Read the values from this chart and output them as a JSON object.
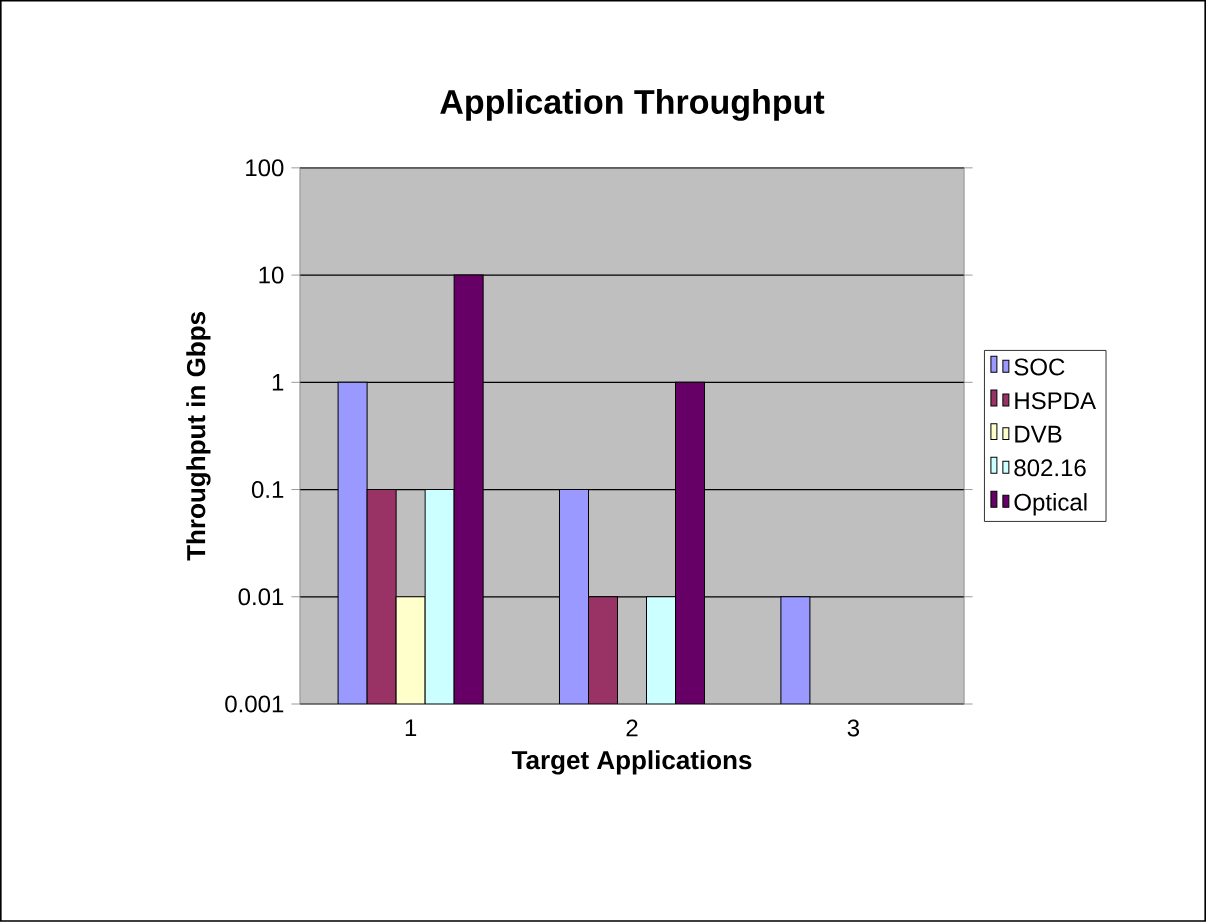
{
  "chart_data": {
    "type": "bar",
    "title": "Application Throughput",
    "xlabel": "Target Applications",
    "ylabel": "Throughput in Gbps",
    "categories": [
      "1",
      "2",
      "3"
    ],
    "series": [
      {
        "name": "SOC",
        "color": "#9999ff",
        "values": [
          1,
          0.1,
          0.01
        ]
      },
      {
        "name": "HSPDA",
        "color": "#993366",
        "values": [
          0.1,
          0.01,
          null
        ]
      },
      {
        "name": "DVB",
        "color": "#ffffcc",
        "values": [
          0.01,
          null,
          null
        ]
      },
      {
        "name": "802.16",
        "color": "#ccffff",
        "values": [
          0.1,
          0.01,
          null
        ]
      },
      {
        "name": "Optical",
        "color": "#660066",
        "values": [
          10,
          1,
          null
        ]
      }
    ],
    "log": "y",
    "ylim": [
      0.001,
      100
    ],
    "yticks": [
      0.001,
      0.01,
      0.1,
      1,
      10,
      100
    ],
    "grid": "y",
    "legend": "right"
  }
}
